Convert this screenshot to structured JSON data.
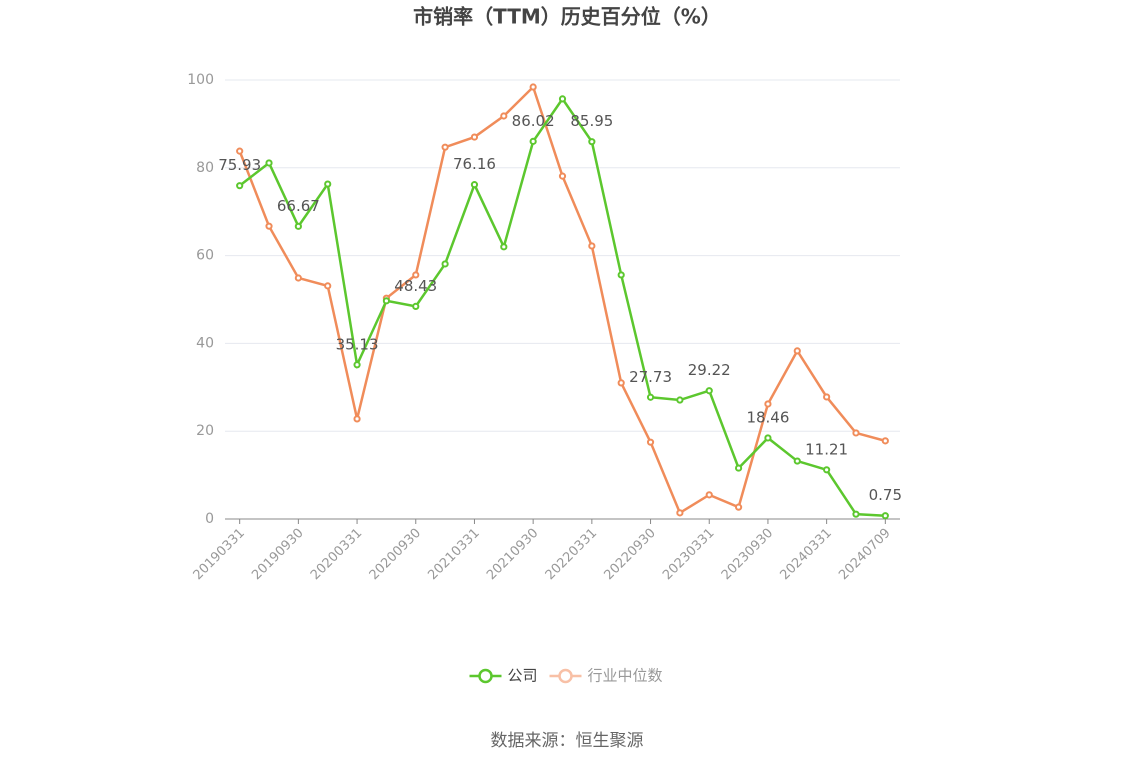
{
  "chart_data": {
    "type": "line",
    "title": "市销率（TTM）历史百分位（%）",
    "source": "数据来源：恒生聚源",
    "categories": [
      "20190331",
      null,
      "20190930",
      null,
      "20200331",
      null,
      "20200930",
      null,
      "20210331",
      null,
      "20210930",
      null,
      "20220331",
      null,
      "20220930",
      null,
      "20230331",
      null,
      "20230930",
      null,
      "20240331",
      null,
      "20240709"
    ],
    "series": [
      {
        "name": "公司",
        "color": "#5cc72e",
        "values": [
          75.93,
          81.1,
          66.67,
          76.3,
          35.13,
          49.7,
          48.43,
          58.1,
          76.16,
          62.0,
          86.02,
          95.7,
          85.95,
          55.6,
          27.73,
          27.1,
          29.22,
          11.6,
          18.46,
          13.2,
          11.21,
          1.1,
          0.75
        ],
        "value_labels": [
          "75.93",
          null,
          "66.67",
          null,
          "35.13",
          null,
          "48.43",
          null,
          "76.16",
          null,
          "86.02",
          null,
          "85.95",
          null,
          "27.73",
          null,
          "29.22",
          null,
          "18.46",
          null,
          "11.21",
          null,
          "0.75"
        ]
      },
      {
        "name": "行业中位数",
        "color": "#f08c5a",
        "values": [
          83.8,
          66.7,
          54.9,
          53.1,
          22.8,
          50.3,
          55.6,
          84.7,
          87.0,
          91.8,
          98.4,
          78.1,
          62.2,
          31.0,
          17.5,
          1.4,
          5.5,
          2.7,
          26.2,
          38.3,
          27.8,
          19.6,
          17.8
        ]
      }
    ],
    "ylim": [
      0,
      100
    ],
    "yticks": [
      0,
      20,
      40,
      60,
      80,
      100
    ],
    "grid": true,
    "legend": "bottom"
  }
}
